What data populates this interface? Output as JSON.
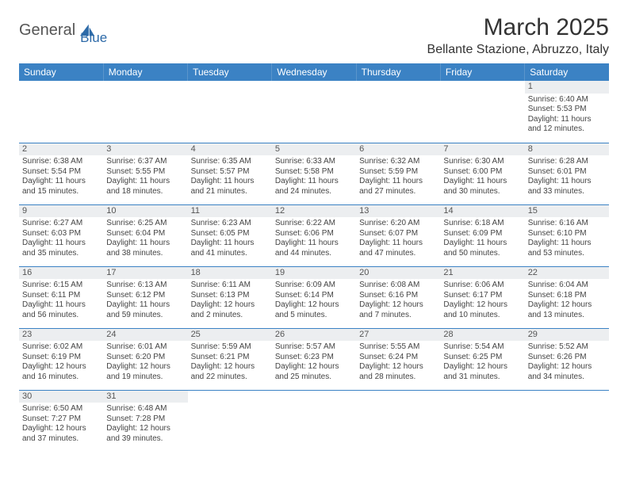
{
  "logo": {
    "part1": "General",
    "part2": "Blue"
  },
  "title": "March 2025",
  "location": "Bellante Stazione, Abruzzo, Italy",
  "colors": {
    "header_bg": "#3b82c4",
    "header_fg": "#ffffff",
    "daynum_bg": "#eceef0",
    "border": "#3b82c4",
    "logo_blue": "#2d6aa8"
  },
  "weekdays": [
    "Sunday",
    "Monday",
    "Tuesday",
    "Wednesday",
    "Thursday",
    "Friday",
    "Saturday"
  ],
  "weeks": [
    [
      {
        "n": "",
        "sr": "",
        "ss": "",
        "dl": ""
      },
      {
        "n": "",
        "sr": "",
        "ss": "",
        "dl": ""
      },
      {
        "n": "",
        "sr": "",
        "ss": "",
        "dl": ""
      },
      {
        "n": "",
        "sr": "",
        "ss": "",
        "dl": ""
      },
      {
        "n": "",
        "sr": "",
        "ss": "",
        "dl": ""
      },
      {
        "n": "",
        "sr": "",
        "ss": "",
        "dl": ""
      },
      {
        "n": "1",
        "sr": "Sunrise: 6:40 AM",
        "ss": "Sunset: 5:53 PM",
        "dl": "Daylight: 11 hours and 12 minutes."
      }
    ],
    [
      {
        "n": "2",
        "sr": "Sunrise: 6:38 AM",
        "ss": "Sunset: 5:54 PM",
        "dl": "Daylight: 11 hours and 15 minutes."
      },
      {
        "n": "3",
        "sr": "Sunrise: 6:37 AM",
        "ss": "Sunset: 5:55 PM",
        "dl": "Daylight: 11 hours and 18 minutes."
      },
      {
        "n": "4",
        "sr": "Sunrise: 6:35 AM",
        "ss": "Sunset: 5:57 PM",
        "dl": "Daylight: 11 hours and 21 minutes."
      },
      {
        "n": "5",
        "sr": "Sunrise: 6:33 AM",
        "ss": "Sunset: 5:58 PM",
        "dl": "Daylight: 11 hours and 24 minutes."
      },
      {
        "n": "6",
        "sr": "Sunrise: 6:32 AM",
        "ss": "Sunset: 5:59 PM",
        "dl": "Daylight: 11 hours and 27 minutes."
      },
      {
        "n": "7",
        "sr": "Sunrise: 6:30 AM",
        "ss": "Sunset: 6:00 PM",
        "dl": "Daylight: 11 hours and 30 minutes."
      },
      {
        "n": "8",
        "sr": "Sunrise: 6:28 AM",
        "ss": "Sunset: 6:01 PM",
        "dl": "Daylight: 11 hours and 33 minutes."
      }
    ],
    [
      {
        "n": "9",
        "sr": "Sunrise: 6:27 AM",
        "ss": "Sunset: 6:03 PM",
        "dl": "Daylight: 11 hours and 35 minutes."
      },
      {
        "n": "10",
        "sr": "Sunrise: 6:25 AM",
        "ss": "Sunset: 6:04 PM",
        "dl": "Daylight: 11 hours and 38 minutes."
      },
      {
        "n": "11",
        "sr": "Sunrise: 6:23 AM",
        "ss": "Sunset: 6:05 PM",
        "dl": "Daylight: 11 hours and 41 minutes."
      },
      {
        "n": "12",
        "sr": "Sunrise: 6:22 AM",
        "ss": "Sunset: 6:06 PM",
        "dl": "Daylight: 11 hours and 44 minutes."
      },
      {
        "n": "13",
        "sr": "Sunrise: 6:20 AM",
        "ss": "Sunset: 6:07 PM",
        "dl": "Daylight: 11 hours and 47 minutes."
      },
      {
        "n": "14",
        "sr": "Sunrise: 6:18 AM",
        "ss": "Sunset: 6:09 PM",
        "dl": "Daylight: 11 hours and 50 minutes."
      },
      {
        "n": "15",
        "sr": "Sunrise: 6:16 AM",
        "ss": "Sunset: 6:10 PM",
        "dl": "Daylight: 11 hours and 53 minutes."
      }
    ],
    [
      {
        "n": "16",
        "sr": "Sunrise: 6:15 AM",
        "ss": "Sunset: 6:11 PM",
        "dl": "Daylight: 11 hours and 56 minutes."
      },
      {
        "n": "17",
        "sr": "Sunrise: 6:13 AM",
        "ss": "Sunset: 6:12 PM",
        "dl": "Daylight: 11 hours and 59 minutes."
      },
      {
        "n": "18",
        "sr": "Sunrise: 6:11 AM",
        "ss": "Sunset: 6:13 PM",
        "dl": "Daylight: 12 hours and 2 minutes."
      },
      {
        "n": "19",
        "sr": "Sunrise: 6:09 AM",
        "ss": "Sunset: 6:14 PM",
        "dl": "Daylight: 12 hours and 5 minutes."
      },
      {
        "n": "20",
        "sr": "Sunrise: 6:08 AM",
        "ss": "Sunset: 6:16 PM",
        "dl": "Daylight: 12 hours and 7 minutes."
      },
      {
        "n": "21",
        "sr": "Sunrise: 6:06 AM",
        "ss": "Sunset: 6:17 PM",
        "dl": "Daylight: 12 hours and 10 minutes."
      },
      {
        "n": "22",
        "sr": "Sunrise: 6:04 AM",
        "ss": "Sunset: 6:18 PM",
        "dl": "Daylight: 12 hours and 13 minutes."
      }
    ],
    [
      {
        "n": "23",
        "sr": "Sunrise: 6:02 AM",
        "ss": "Sunset: 6:19 PM",
        "dl": "Daylight: 12 hours and 16 minutes."
      },
      {
        "n": "24",
        "sr": "Sunrise: 6:01 AM",
        "ss": "Sunset: 6:20 PM",
        "dl": "Daylight: 12 hours and 19 minutes."
      },
      {
        "n": "25",
        "sr": "Sunrise: 5:59 AM",
        "ss": "Sunset: 6:21 PM",
        "dl": "Daylight: 12 hours and 22 minutes."
      },
      {
        "n": "26",
        "sr": "Sunrise: 5:57 AM",
        "ss": "Sunset: 6:23 PM",
        "dl": "Daylight: 12 hours and 25 minutes."
      },
      {
        "n": "27",
        "sr": "Sunrise: 5:55 AM",
        "ss": "Sunset: 6:24 PM",
        "dl": "Daylight: 12 hours and 28 minutes."
      },
      {
        "n": "28",
        "sr": "Sunrise: 5:54 AM",
        "ss": "Sunset: 6:25 PM",
        "dl": "Daylight: 12 hours and 31 minutes."
      },
      {
        "n": "29",
        "sr": "Sunrise: 5:52 AM",
        "ss": "Sunset: 6:26 PM",
        "dl": "Daylight: 12 hours and 34 minutes."
      }
    ],
    [
      {
        "n": "30",
        "sr": "Sunrise: 6:50 AM",
        "ss": "Sunset: 7:27 PM",
        "dl": "Daylight: 12 hours and 37 minutes."
      },
      {
        "n": "31",
        "sr": "Sunrise: 6:48 AM",
        "ss": "Sunset: 7:28 PM",
        "dl": "Daylight: 12 hours and 39 minutes."
      },
      {
        "n": "",
        "sr": "",
        "ss": "",
        "dl": ""
      },
      {
        "n": "",
        "sr": "",
        "ss": "",
        "dl": ""
      },
      {
        "n": "",
        "sr": "",
        "ss": "",
        "dl": ""
      },
      {
        "n": "",
        "sr": "",
        "ss": "",
        "dl": ""
      },
      {
        "n": "",
        "sr": "",
        "ss": "",
        "dl": ""
      }
    ]
  ]
}
